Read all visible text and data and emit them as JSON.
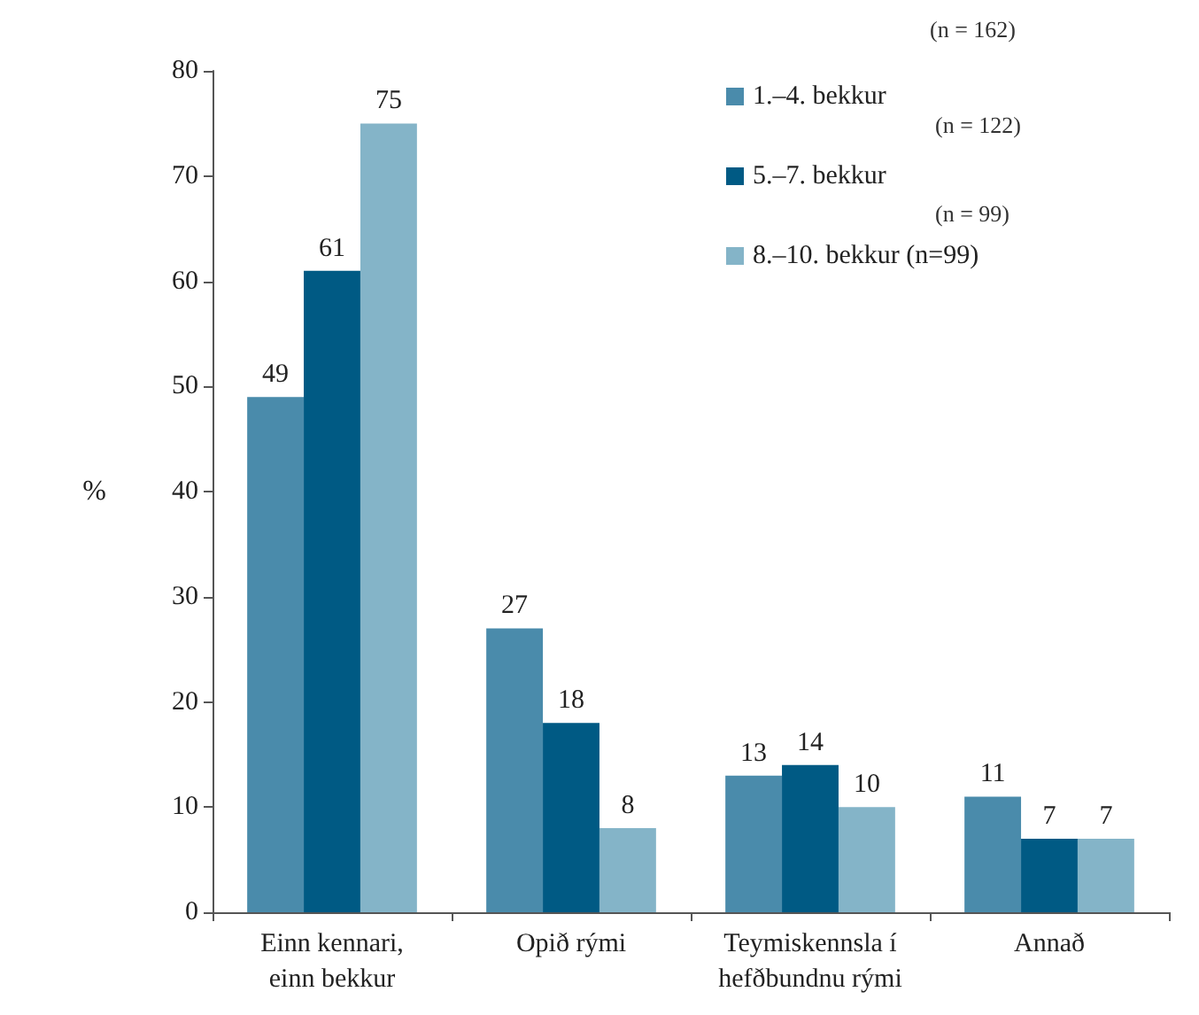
{
  "chart_data": {
    "type": "bar",
    "ylabel": "%",
    "categories": [
      "Einn kennari,\neinn bekkur",
      "Opið rými",
      "Teymiskennsla í\nhefðbundnu rými",
      "Annað"
    ],
    "series": [
      {
        "name": "1.–4. bekkur",
        "color": "#4a8bab",
        "values": [
          49,
          27,
          13,
          11
        ]
      },
      {
        "name": "5.–7. bekkur",
        "color": "#005a84",
        "values": [
          61,
          18,
          14,
          7
        ]
      },
      {
        "name": "8.–10. bekkur (n=99)",
        "color": "#84b4c8",
        "values": [
          75,
          8,
          10,
          7
        ]
      }
    ],
    "annotations": [
      "(n = 162)",
      "(n = 122)",
      "(n = 99)"
    ],
    "ylim": [
      0,
      80
    ],
    "yticks": [
      0,
      10,
      20,
      30,
      40,
      50,
      60,
      70,
      80
    ],
    "data_labels": true,
    "grid": false,
    "legend": "top right"
  }
}
